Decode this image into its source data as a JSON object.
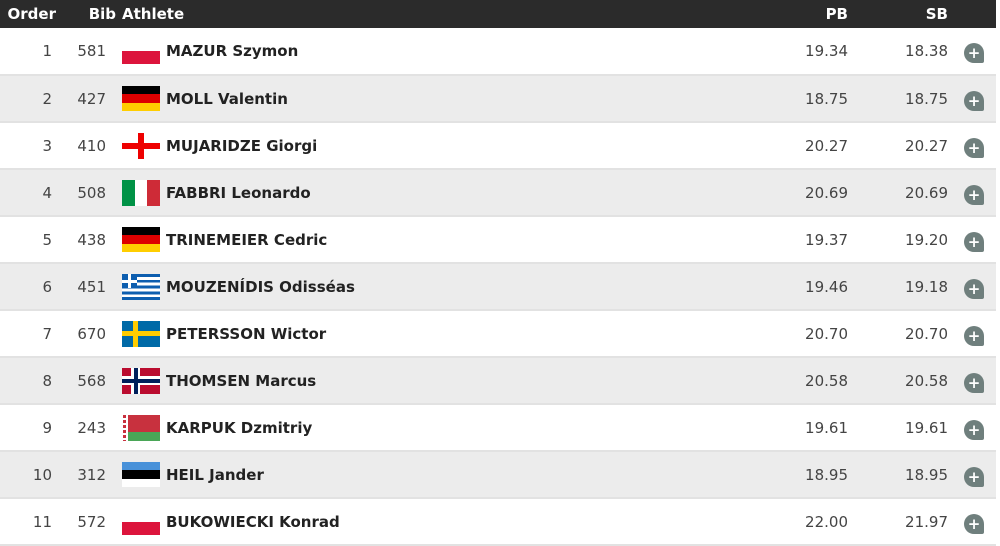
{
  "headers": {
    "order": "Order",
    "bib": "Bib",
    "athlete": "Athlete",
    "pb": "PB",
    "sb": "SB"
  },
  "rows": [
    {
      "order": "1",
      "bib": "581",
      "name": "MAZUR Szymon",
      "flag": "poland",
      "pb": "19.34",
      "sb": "18.38"
    },
    {
      "order": "2",
      "bib": "427",
      "name": "MOLL Valentin",
      "flag": "germany",
      "pb": "18.75",
      "sb": "18.75"
    },
    {
      "order": "3",
      "bib": "410",
      "name": "MUJARIDZE Giorgi",
      "flag": "georgia",
      "pb": "20.27",
      "sb": "20.27"
    },
    {
      "order": "4",
      "bib": "508",
      "name": "FABBRI Leonardo",
      "flag": "italy",
      "pb": "20.69",
      "sb": "20.69"
    },
    {
      "order": "5",
      "bib": "438",
      "name": "TRINEMEIER Cedric",
      "flag": "germany",
      "pb": "19.37",
      "sb": "19.20"
    },
    {
      "order": "6",
      "bib": "451",
      "name": "MOUZENÍDIS Odisséas",
      "flag": "greece",
      "pb": "19.46",
      "sb": "19.18"
    },
    {
      "order": "7",
      "bib": "670",
      "name": "PETERSSON Wictor",
      "flag": "sweden",
      "pb": "20.70",
      "sb": "20.70"
    },
    {
      "order": "8",
      "bib": "568",
      "name": "THOMSEN Marcus",
      "flag": "norway",
      "pb": "20.58",
      "sb": "20.58"
    },
    {
      "order": "9",
      "bib": "243",
      "name": "KARPUK Dzmitriy",
      "flag": "belarus",
      "pb": "19.61",
      "sb": "19.61"
    },
    {
      "order": "10",
      "bib": "312",
      "name": "HEIL Jander",
      "flag": "estonia",
      "pb": "18.95",
      "sb": "18.95"
    },
    {
      "order": "11",
      "bib": "572",
      "name": "BUKOWIECKI Konrad",
      "flag": "poland",
      "pb": "22.00",
      "sb": "21.97"
    }
  ],
  "icons": {
    "details": "plus-circle-icon"
  },
  "colors": {
    "header_bg": "#2b2b2b",
    "alt_row": "#ececec",
    "details_button": "#6f7f7d"
  }
}
